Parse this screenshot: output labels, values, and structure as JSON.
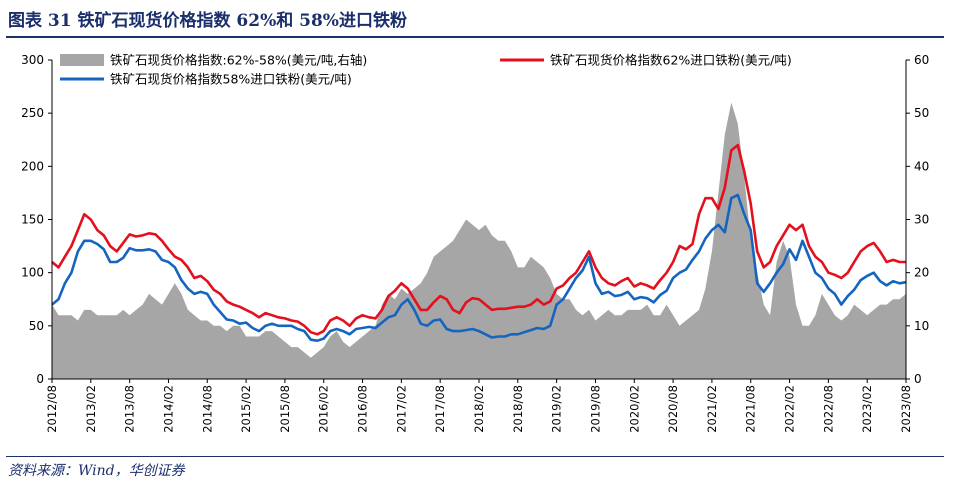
{
  "figure_title": "图表 31 铁矿石现货价格指数 62%和 58%进口铁粉",
  "source_note": "资料来源：Wind，华创证券",
  "colors": {
    "spread": "#a6a6a6",
    "s62": "#e3101d",
    "s58": "#1565c0",
    "rule": "#1a2f6b"
  },
  "chart_data": {
    "type": "line",
    "x_tick_labels": [
      "2012/08",
      "2013/02",
      "2013/08",
      "2014/02",
      "2014/08",
      "2015/02",
      "2015/08",
      "2016/02",
      "2016/08",
      "2017/02",
      "2017/08",
      "2018/02",
      "2018/08",
      "2019/02",
      "2019/08",
      "2020/02",
      "2020/08",
      "2021/02",
      "2021/08",
      "2022/02",
      "2022/08",
      "2023/02",
      "2023/08"
    ],
    "y_left_ticks": [
      "0",
      "50",
      "100",
      "150",
      "200",
      "250",
      "300"
    ],
    "y_right_ticks": [
      "0",
      "10",
      "20",
      "30",
      "40",
      "50",
      "60"
    ],
    "ylim_left": [
      0,
      300
    ],
    "ylim_right": [
      0,
      60
    ],
    "legend": [
      {
        "label": "铁矿石现货价格指数:62%-58%(美元/吨,右轴)",
        "kind": "area",
        "color": "#a6a6a6"
      },
      {
        "label": "铁矿石现货价格指数62%进口铁粉(美元/吨)",
        "kind": "line",
        "color": "#e3101d"
      },
      {
        "label": "铁矿石现货价格指数58%进口铁粉(美元/吨)",
        "kind": "line",
        "color": "#1565c0"
      }
    ],
    "x": [
      "2012/08",
      "2012/09",
      "2012/10",
      "2012/11",
      "2012/12",
      "2013/01",
      "2013/02",
      "2013/03",
      "2013/04",
      "2013/05",
      "2013/06",
      "2013/07",
      "2013/08",
      "2013/09",
      "2013/10",
      "2013/11",
      "2013/12",
      "2014/01",
      "2014/02",
      "2014/03",
      "2014/04",
      "2014/05",
      "2014/06",
      "2014/07",
      "2014/08",
      "2014/09",
      "2014/10",
      "2014/11",
      "2014/12",
      "2015/01",
      "2015/02",
      "2015/03",
      "2015/04",
      "2015/05",
      "2015/06",
      "2015/07",
      "2015/08",
      "2015/09",
      "2015/10",
      "2015/11",
      "2015/12",
      "2016/01",
      "2016/02",
      "2016/03",
      "2016/04",
      "2016/05",
      "2016/06",
      "2016/07",
      "2016/08",
      "2016/09",
      "2016/10",
      "2016/11",
      "2016/12",
      "2017/01",
      "2017/02",
      "2017/03",
      "2017/04",
      "2017/05",
      "2017/06",
      "2017/07",
      "2017/08",
      "2017/09",
      "2017/10",
      "2017/11",
      "2017/12",
      "2018/01",
      "2018/02",
      "2018/03",
      "2018/04",
      "2018/05",
      "2018/06",
      "2018/07",
      "2018/08",
      "2018/09",
      "2018/10",
      "2018/11",
      "2018/12",
      "2019/01",
      "2019/02",
      "2019/03",
      "2019/04",
      "2019/05",
      "2019/06",
      "2019/07",
      "2019/08",
      "2019/09",
      "2019/10",
      "2019/11",
      "2019/12",
      "2020/01",
      "2020/02",
      "2020/03",
      "2020/04",
      "2020/05",
      "2020/06",
      "2020/07",
      "2020/08",
      "2020/09",
      "2020/10",
      "2020/11",
      "2020/12",
      "2021/01",
      "2021/02",
      "2021/03",
      "2021/04",
      "2021/05",
      "2021/06",
      "2021/07",
      "2021/08",
      "2021/09",
      "2021/10",
      "2021/11",
      "2021/12",
      "2022/01",
      "2022/02",
      "2022/03",
      "2022/04",
      "2022/05",
      "2022/06",
      "2022/07",
      "2022/08",
      "2022/09",
      "2022/10",
      "2022/11",
      "2022/12",
      "2023/01",
      "2023/02",
      "2023/03",
      "2023/04",
      "2023/05",
      "2023/06",
      "2023/07",
      "2023/08"
    ],
    "series": [
      {
        "name": "铁矿石现货价格指数:62%-58%(美元/吨,右轴)",
        "axis": "right",
        "values": [
          14,
          12,
          12,
          12,
          11,
          13,
          13,
          12,
          12,
          12,
          12,
          13,
          12,
          13,
          14,
          16,
          15,
          14,
          16,
          18,
          16,
          13,
          12,
          11,
          11,
          10,
          10,
          9,
          10,
          10,
          8,
          8,
          8,
          9,
          9,
          8,
          7,
          6,
          6,
          5,
          4,
          5,
          6,
          8,
          9,
          7,
          6,
          7,
          8,
          9,
          10,
          14,
          16,
          15,
          17,
          16,
          17,
          18,
          20,
          23,
          24,
          25,
          26,
          28,
          30,
          29,
          28,
          29,
          27,
          26,
          26,
          24,
          21,
          21,
          23,
          22,
          21,
          19,
          16,
          15,
          15,
          13,
          12,
          13,
          11,
          12,
          13,
          12,
          12,
          13,
          13,
          13,
          14,
          12,
          12,
          14,
          12,
          10,
          11,
          12,
          13,
          17,
          24,
          35,
          46,
          52,
          48,
          38,
          26,
          20,
          14,
          12,
          22,
          26,
          23,
          14,
          10,
          10,
          12,
          16,
          14,
          12,
          11,
          12,
          14,
          13,
          12,
          13,
          14,
          14,
          15,
          15,
          16
        ]
      },
      {
        "name": "铁矿石现货价格指数62%进口铁粉(美元/吨)",
        "axis": "left",
        "values": [
          110,
          105,
          115,
          125,
          140,
          155,
          150,
          140,
          135,
          125,
          120,
          128,
          136,
          134,
          135,
          137,
          136,
          130,
          122,
          115,
          112,
          105,
          95,
          97,
          92,
          84,
          80,
          73,
          70,
          68,
          65,
          62,
          58,
          62,
          60,
          58,
          57,
          55,
          54,
          50,
          44,
          42,
          45,
          55,
          58,
          55,
          50,
          57,
          60,
          58,
          57,
          65,
          78,
          83,
          90,
          85,
          75,
          65,
          65,
          72,
          78,
          75,
          65,
          62,
          72,
          76,
          75,
          70,
          65,
          66,
          66,
          67,
          68,
          68,
          70,
          75,
          70,
          73,
          85,
          88,
          95,
          100,
          110,
          120,
          105,
          95,
          90,
          88,
          92,
          95,
          87,
          90,
          88,
          85,
          93,
          100,
          110,
          125,
          122,
          127,
          155,
          170,
          170,
          160,
          180,
          215,
          220,
          195,
          165,
          120,
          105,
          110,
          125,
          135,
          145,
          140,
          145,
          125,
          115,
          110,
          100,
          98,
          95,
          100,
          110,
          120,
          125,
          128,
          120,
          110,
          112,
          110,
          110
        ]
      },
      {
        "name": "铁矿石现货价格指数58%进口铁粉(美元/吨)",
        "axis": "left",
        "values": [
          70,
          75,
          90,
          100,
          120,
          130,
          130,
          127,
          122,
          110,
          110,
          114,
          123,
          121,
          121,
          122,
          120,
          112,
          110,
          105,
          93,
          85,
          80,
          82,
          80,
          70,
          63,
          56,
          55,
          52,
          53,
          48,
          45,
          50,
          52,
          50,
          50,
          50,
          47,
          45,
          37,
          36,
          38,
          45,
          47,
          45,
          42,
          47,
          48,
          49,
          48,
          53,
          58,
          60,
          70,
          75,
          65,
          52,
          50,
          55,
          56,
          47,
          45,
          45,
          46,
          47,
          45,
          42,
          39,
          40,
          40,
          42,
          42,
          44,
          46,
          48,
          47,
          50,
          70,
          75,
          85,
          95,
          102,
          115,
          90,
          80,
          82,
          78,
          79,
          82,
          75,
          77,
          76,
          72,
          79,
          83,
          95,
          100,
          103,
          112,
          120,
          132,
          140,
          145,
          138,
          170,
          173,
          155,
          140,
          90,
          82,
          90,
          100,
          108,
          122,
          112,
          130,
          115,
          100,
          95,
          85,
          80,
          70,
          78,
          84,
          93,
          97,
          100,
          92,
          88,
          92,
          90,
          91
        ]
      }
    ]
  }
}
